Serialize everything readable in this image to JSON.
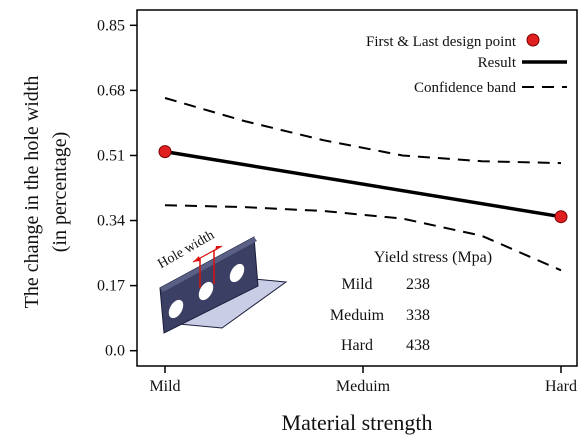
{
  "chart_data": {
    "type": "line",
    "xlabel": "Material strength",
    "ylabel_lines": [
      "The change in the hole width",
      "(in percentage)"
    ],
    "categories": [
      "Mild",
      "Meduim",
      "Hard"
    ],
    "yticks": [
      "0.0",
      "0.17",
      "0.34",
      "0.51",
      "0.68",
      "0.85"
    ],
    "ylim": [
      -0.04,
      0.89
    ],
    "grid": false,
    "legend_position": "top-right",
    "legend": [
      {
        "label": "First & Last design point",
        "style": "red-dot"
      },
      {
        "label": "Result",
        "style": "solid"
      },
      {
        "label": "Confidence band",
        "style": "dashed"
      }
    ],
    "series": [
      {
        "name": "Result",
        "x": [
          0,
          2
        ],
        "values": [
          0.52,
          0.35
        ],
        "color": "#000000"
      },
      {
        "name": "Confidence band",
        "band": "upper",
        "x": [
          0,
          0.4,
          0.8,
          1.2,
          1.6,
          2.0
        ],
        "values": [
          0.66,
          0.6,
          0.55,
          0.51,
          0.495,
          0.49
        ],
        "color": "#000000"
      },
      {
        "name": "Confidence band",
        "band": "lower",
        "x": [
          0,
          0.4,
          0.8,
          1.2,
          1.6,
          2.0
        ],
        "values": [
          0.38,
          0.375,
          0.365,
          0.345,
          0.3,
          0.21
        ],
        "color": "#000000"
      }
    ],
    "design_points": {
      "x": [
        0,
        2
      ],
      "values": [
        0.52,
        0.35
      ],
      "color": "#e02020"
    },
    "inset_table": {
      "title": "Yield stress (Mpa)",
      "rows": [
        {
          "material": "Mild",
          "value": "238"
        },
        {
          "material": "Meduim",
          "value": "338"
        },
        {
          "material": "Hard",
          "value": "438"
        }
      ]
    },
    "illustration_label": "Hole width"
  }
}
